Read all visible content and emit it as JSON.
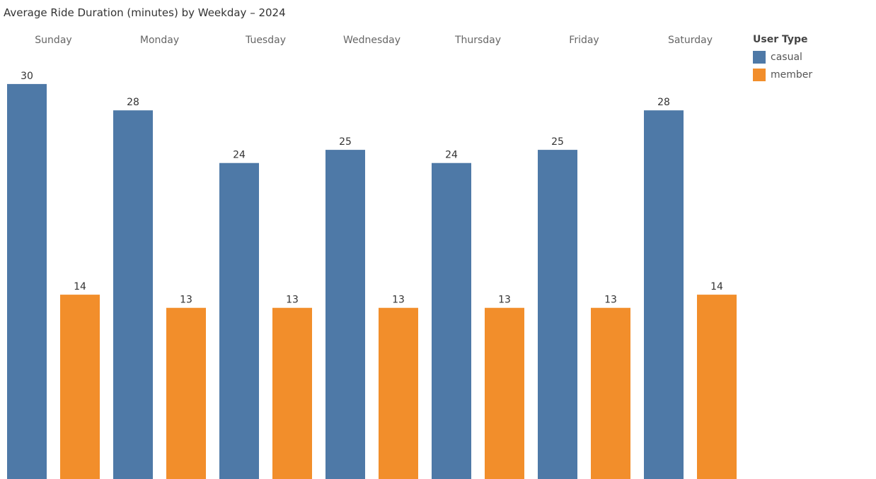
{
  "chart_data": {
    "type": "bar",
    "title": "Average Ride Duration (minutes) by Weekday – 2024",
    "categories": [
      "Sunday",
      "Monday",
      "Tuesday",
      "Wednesday",
      "Thursday",
      "Friday",
      "Saturday"
    ],
    "series": [
      {
        "name": "casual",
        "color": "#4e79a7",
        "values": [
          30,
          28,
          24,
          25,
          24,
          25,
          28
        ]
      },
      {
        "name": "member",
        "color": "#f28e2b",
        "values": [
          14,
          13,
          13,
          13,
          13,
          13,
          14
        ]
      }
    ],
    "legend": {
      "title": "User Type",
      "placement": "top-right"
    },
    "ylim": [
      0,
      30.8
    ],
    "grid": false
  }
}
